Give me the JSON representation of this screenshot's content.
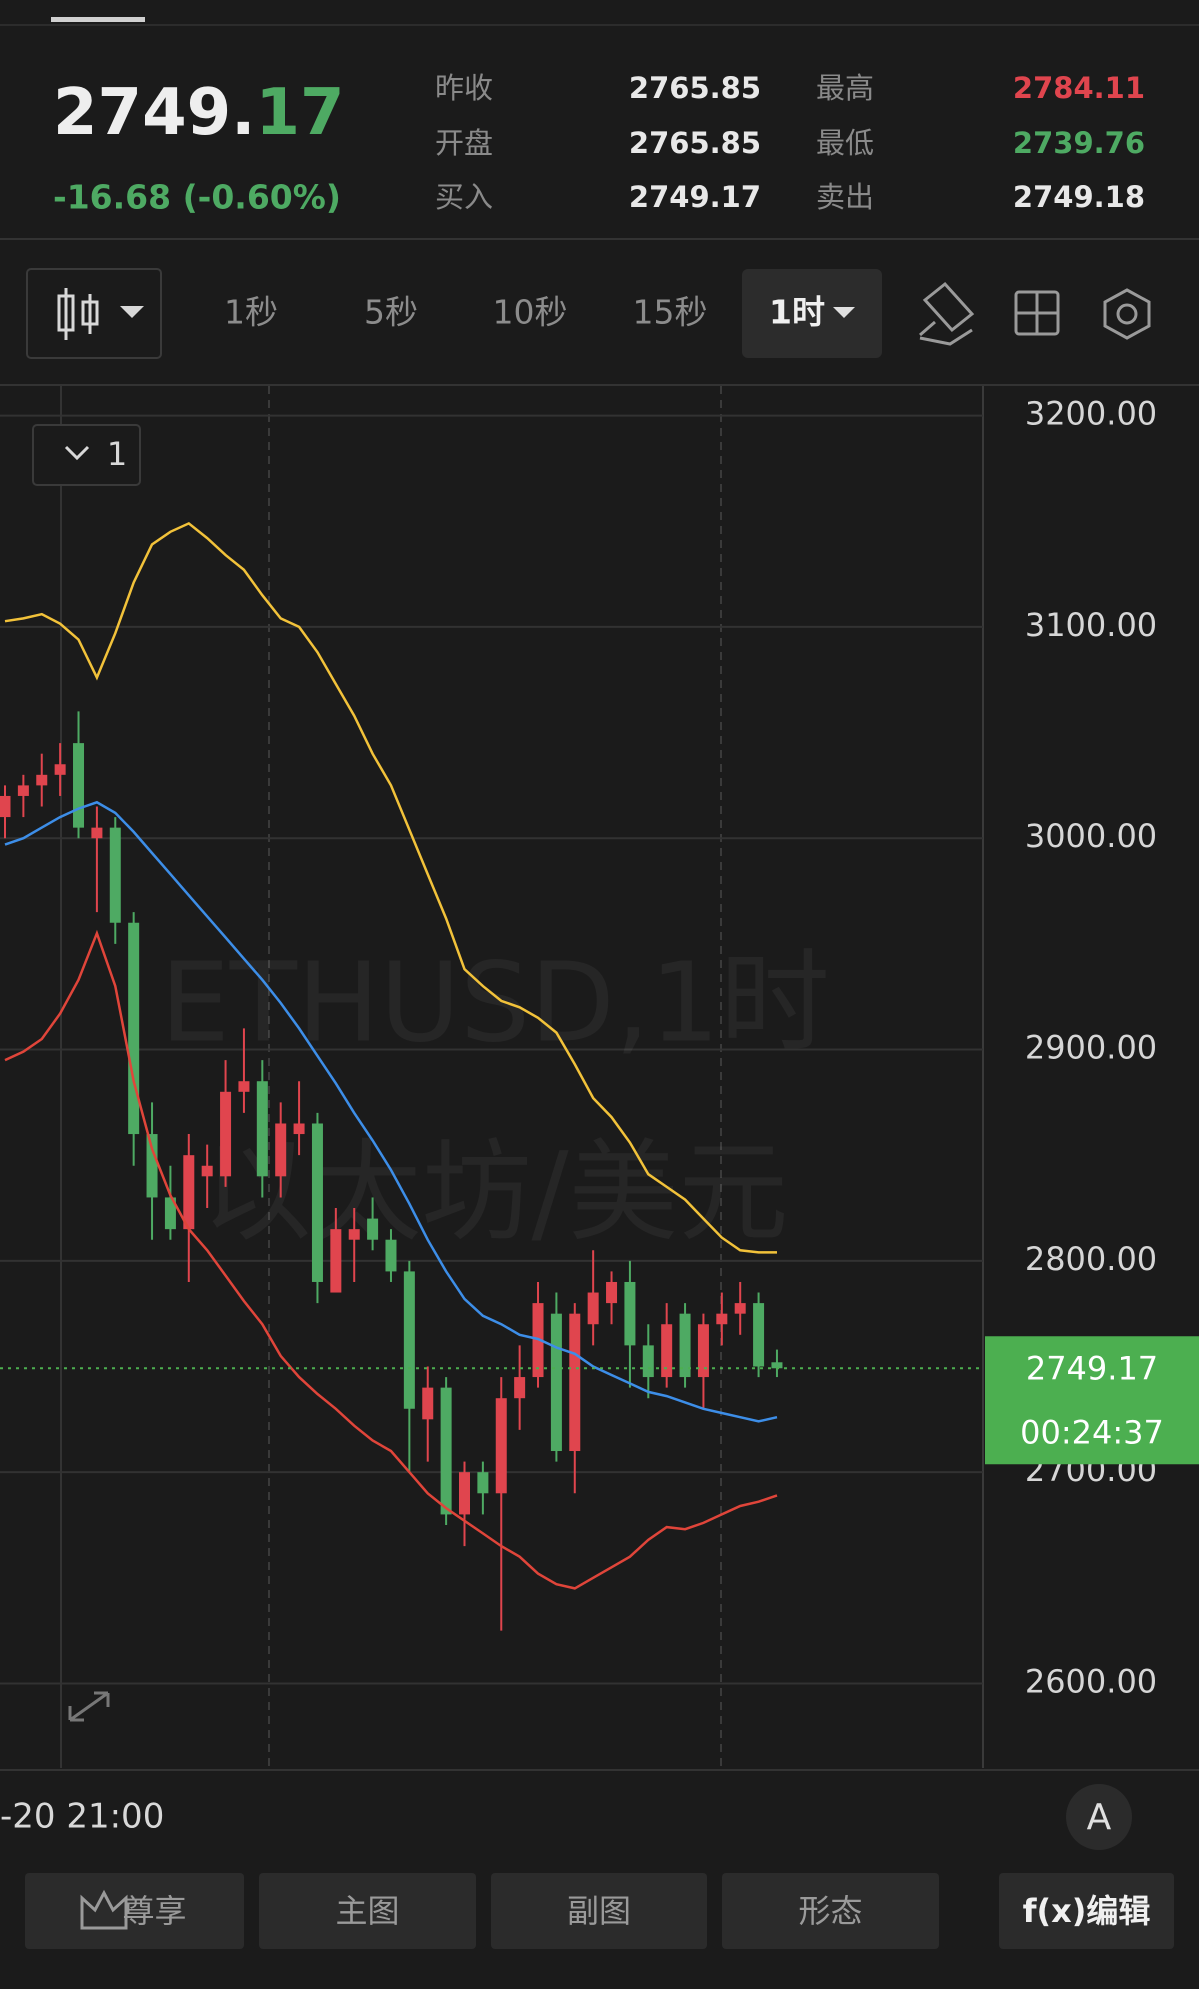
{
  "header": {
    "price_main": "2749.",
    "price_decimal": "17",
    "change": "-16.68 (-0.60%)",
    "stats": [
      {
        "label": "昨收",
        "value": 2765.85
      },
      {
        "label": "最高",
        "value": 2784.11
      },
      {
        "label": "开盘",
        "value": 2765.85
      },
      {
        "label": "最低",
        "value": 2739.76
      },
      {
        "label": "买入",
        "value": 2749.17
      },
      {
        "label": "卖出",
        "value": 2749.18
      }
    ]
  },
  "toolbar": {
    "intervals": [
      "1秒",
      "5秒",
      "10秒",
      "15秒",
      "1时"
    ]
  },
  "chart_data": {
    "type": "candlestick",
    "watermark": [
      "ETHUSD,1时",
      "以太坊/美元"
    ],
    "indicator_label": "1",
    "x_label": "-20 21:00",
    "ylim": [
      2560,
      3214
    ],
    "yticks": [
      {
        "value": 2600,
        "label": "2600.00"
      },
      {
        "value": 2700,
        "label": "2700.00"
      },
      {
        "value": 2800,
        "label": "2800.00"
      },
      {
        "value": 2900,
        "label": "2900.00"
      },
      {
        "value": 3000,
        "label": "3000.00"
      },
      {
        "value": 3100,
        "label": "3100.00"
      },
      {
        "value": 3200,
        "label": "3200.00"
      }
    ],
    "grid": true,
    "up_color": "#e0454e",
    "down_color": "#4eaa63",
    "open": [
      3010,
      3020,
      3025,
      3030,
      3045,
      3000,
      3005,
      2960,
      2860,
      2830,
      2815,
      2840,
      2840,
      2880,
      2885,
      2840,
      2860,
      2865,
      2785,
      2810,
      2820,
      2810,
      2795,
      2725,
      2740,
      2680,
      2700,
      2690,
      2735,
      2745,
      2775,
      2710,
      2770,
      2780,
      2790,
      2760,
      2745,
      2775,
      2745,
      2770,
      2775,
      2780,
      2752
    ],
    "high": [
      3025,
      3030,
      3040,
      3045,
      3060,
      3015,
      3010,
      2965,
      2875,
      2845,
      2860,
      2855,
      2895,
      2910,
      2895,
      2875,
      2885,
      2870,
      2825,
      2825,
      2830,
      2815,
      2800,
      2750,
      2745,
      2705,
      2705,
      2745,
      2760,
      2790,
      2785,
      2780,
      2805,
      2795,
      2800,
      2770,
      2780,
      2780,
      2775,
      2785,
      2790,
      2785,
      2758
    ],
    "low": [
      3000,
      3010,
      3015,
      3020,
      3000,
      2965,
      2950,
      2845,
      2810,
      2810,
      2790,
      2825,
      2835,
      2870,
      2830,
      2830,
      2850,
      2780,
      2785,
      2790,
      2805,
      2790,
      2700,
      2705,
      2675,
      2665,
      2680,
      2625,
      2720,
      2740,
      2705,
      2690,
      2760,
      2770,
      2740,
      2735,
      2740,
      2740,
      2730,
      2760,
      2765,
      2745,
      2745
    ],
    "close": [
      3020,
      3025,
      3030,
      3035,
      3005,
      3005,
      2960,
      2860,
      2830,
      2815,
      2850,
      2845,
      2880,
      2885,
      2840,
      2865,
      2865,
      2790,
      2815,
      2815,
      2810,
      2795,
      2730,
      2740,
      2680,
      2700,
      2690,
      2735,
      2745,
      2780,
      2710,
      2775,
      2785,
      2790,
      2760,
      2745,
      2770,
      2745,
      2770,
      2775,
      2780,
      2750,
      2749.17
    ],
    "bands": [
      {
        "color": "#f2c23a",
        "values": [
          3102.7,
          3104,
          3106,
          3101.5,
          3094,
          3076,
          3097,
          3121,
          3139,
          3145,
          3149,
          3142,
          3134,
          3127,
          3115,
          3104,
          3100,
          3088,
          3073,
          3058,
          3040,
          3025,
          3004,
          2983,
          2962,
          2938,
          2930,
          2923,
          2920,
          2915,
          2908,
          2893,
          2877,
          2868,
          2856,
          2841,
          2835,
          2829,
          2820,
          2811,
          2805,
          2804,
          2804
        ]
      },
      {
        "color": "#3d8ee8",
        "values": [
          2997,
          3000,
          3005,
          3010,
          3014,
          3017,
          3012,
          3003,
          2993,
          2983,
          2973,
          2963,
          2953,
          2943,
          2933,
          2922,
          2910,
          2897,
          2884,
          2870,
          2857,
          2843,
          2827,
          2810,
          2795,
          2782,
          2774,
          2770,
          2765,
          2763,
          2759,
          2756,
          2750,
          2746,
          2742,
          2738,
          2736,
          2733,
          2730,
          2728,
          2726,
          2724,
          2726
        ]
      },
      {
        "color": "#e0453a",
        "values": [
          2895,
          2899,
          2905,
          2917,
          2933,
          2955,
          2930,
          2885,
          2853,
          2831,
          2815,
          2805,
          2793,
          2781,
          2770,
          2755,
          2745,
          2737,
          2730,
          2722,
          2715,
          2710,
          2700,
          2690,
          2683,
          2677,
          2671,
          2665,
          2660,
          2652,
          2647,
          2645,
          2650,
          2655,
          2660,
          2668,
          2674,
          2673,
          2676,
          2680,
          2684,
          2686,
          2689
        ]
      }
    ],
    "last_price": 2749.17,
    "countdown": "00:24:37",
    "price_label_color": "#4caf50"
  },
  "footer": {
    "buttons": [
      "尊享",
      "主图",
      "副图",
      "形态",
      "f(x)编辑"
    ],
    "font_button": "A"
  }
}
